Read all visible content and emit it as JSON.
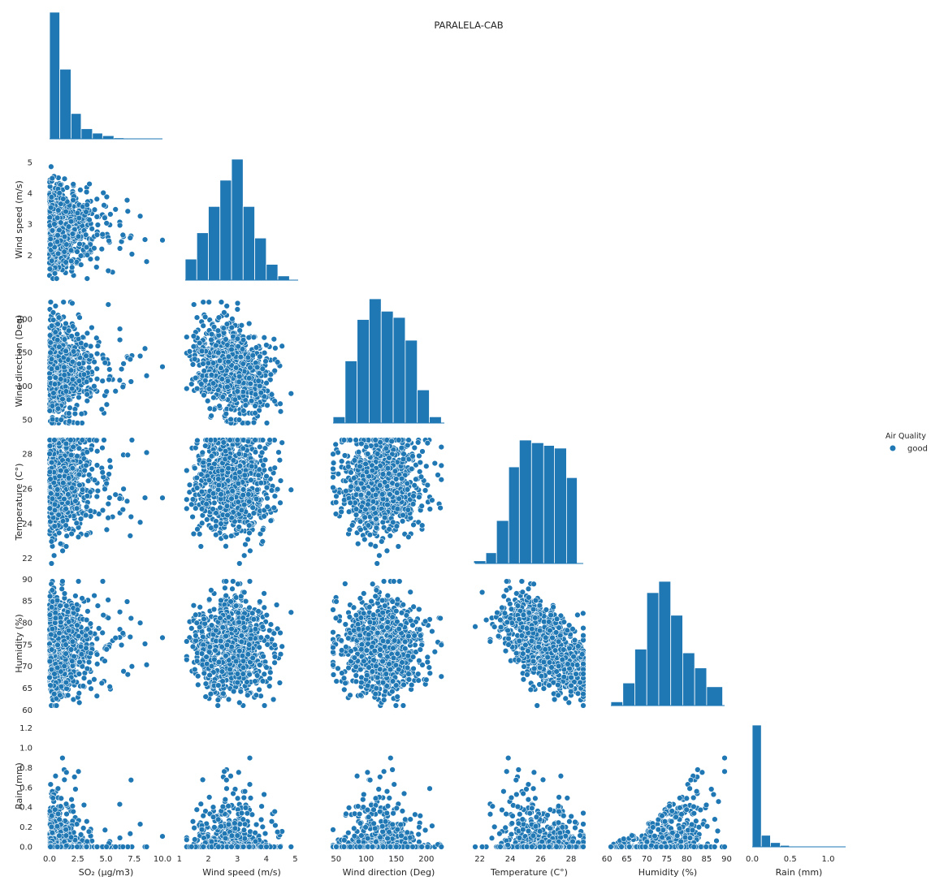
{
  "title": "PARALELA-CAB",
  "legend": {
    "title": "Air Quality",
    "items": [
      {
        "label": "good",
        "color": "#1f77b4"
      }
    ]
  },
  "chart_data": {
    "type": "scatter",
    "subtype": "pairplot-lower-triangle",
    "title": "PARALELA-CAB",
    "hue": "Air Quality",
    "hue_levels": [
      "good"
    ],
    "color": "#1f77b4",
    "variables": [
      {
        "key": "so2",
        "label": "SO₂ (µg/m3)",
        "range": [
          0,
          10
        ],
        "ticks": [
          0,
          2.5,
          5,
          7.5,
          10
        ],
        "tick_labels": [
          "0.0",
          "2.5",
          "5.0",
          "7.5",
          "10.0"
        ]
      },
      {
        "key": "wind_speed",
        "label": "Wind speed (m/s)",
        "range": [
          1.2,
          5.1
        ],
        "ticks": [
          1,
          2,
          3,
          4,
          5
        ],
        "tick_labels": [
          "1",
          "2",
          "3",
          "4",
          "5"
        ]
      },
      {
        "key": "wind_dir",
        "label": "Wind direction (Deg)",
        "range": [
          45,
          230
        ],
        "ticks": [
          50,
          100,
          150,
          200
        ],
        "tick_labels": [
          "50",
          "100",
          "150",
          "200"
        ]
      },
      {
        "key": "temp",
        "label": "Temperature (C°)",
        "range": [
          21.7,
          28.8
        ],
        "ticks": [
          22,
          24,
          26,
          28
        ],
        "tick_labels": [
          "22",
          "24",
          "26",
          "28"
        ]
      },
      {
        "key": "humidity",
        "label": "Humidity (%)",
        "range": [
          61,
          89.5
        ],
        "ticks": [
          60,
          65,
          70,
          75,
          80,
          85,
          90
        ],
        "tick_labels": [
          "60",
          "65",
          "70",
          "75",
          "80",
          "85",
          "90"
        ]
      },
      {
        "key": "rain",
        "label": "Rain (mm)",
        "range": [
          0,
          1.23
        ],
        "ticks": [
          0,
          0.2,
          0.4,
          0.6,
          0.8,
          1.0,
          1.2
        ],
        "tick_labels": [
          "0.0",
          "0.2",
          "0.4",
          "0.6",
          "0.8",
          "1.0",
          "1.2"
        ],
        "x_ticks": [
          0,
          0.5,
          1.0
        ],
        "x_tick_labels": [
          "0.0",
          "0.5",
          "1.0"
        ]
      }
    ],
    "row_labels": [
      "Wind speed (m/s)",
      "Wind direction (Deg)",
      "Temperature (C°)",
      "Humidity (%)",
      "Rain (mm)"
    ],
    "histograms": [
      {
        "variable": "so2",
        "bin_edges": [
          0,
          0.9,
          1.9,
          2.8,
          3.8,
          4.7,
          5.7,
          6.6,
          7.6,
          8.5
        ],
        "counts": [
          1000,
          550,
          200,
          80,
          45,
          25,
          8,
          5,
          2
        ]
      },
      {
        "variable": "wind_speed",
        "bin_edges": [
          1.2,
          1.6,
          2.0,
          2.4,
          2.8,
          3.2,
          3.6,
          4.0,
          4.4,
          4.8
        ],
        "counts": [
          40,
          90,
          140,
          190,
          230,
          140,
          80,
          30,
          8
        ]
      },
      {
        "variable": "wind_dir",
        "bin_edges": [
          45,
          65,
          85,
          105,
          125,
          145,
          165,
          185,
          205,
          225
        ],
        "counts": [
          15,
          150,
          250,
          300,
          270,
          255,
          200,
          80,
          15
        ]
      },
      {
        "variable": "temp",
        "bin_edges": [
          21.6,
          22.4,
          23.1,
          23.9,
          24.6,
          25.4,
          26.2,
          26.9,
          27.7,
          28.4
        ],
        "counts": [
          5,
          20,
          80,
          180,
          230,
          225,
          220,
          215,
          160
        ]
      },
      {
        "variable": "humidity",
        "bin_edges": [
          61,
          64,
          67,
          70,
          73,
          76,
          79,
          82,
          85,
          89
        ],
        "counts": [
          10,
          60,
          150,
          300,
          330,
          240,
          140,
          100,
          50
        ]
      },
      {
        "variable": "rain",
        "bin_edges": [
          0,
          0.12,
          0.24,
          0.37,
          0.49,
          0.61,
          0.74,
          0.86
        ],
        "counts": [
          1000,
          95,
          35,
          12,
          5,
          2,
          1
        ]
      }
    ],
    "n_points_per_scatter": 900
  }
}
